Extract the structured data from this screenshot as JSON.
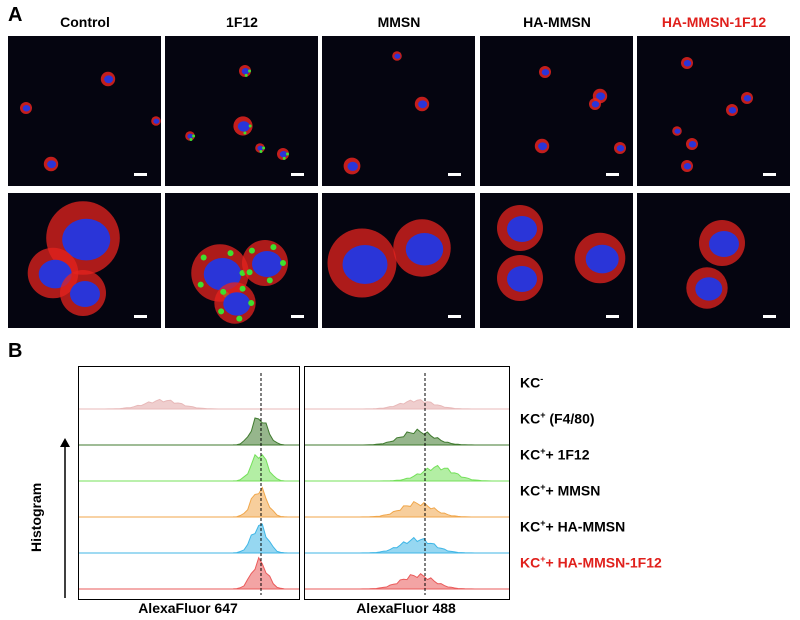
{
  "panel_a": {
    "letter": "A",
    "columns": [
      {
        "title": "Control",
        "color": "#000000"
      },
      {
        "title": "1F12",
        "color": "#000000"
      },
      {
        "title": "MMSN",
        "color": "#000000"
      },
      {
        "title": "HA-MMSN",
        "color": "#000000"
      },
      {
        "title": "HA-MMSN-1F12",
        "color": "#e0201c"
      }
    ]
  },
  "panel_b": {
    "letter": "B",
    "y_label": "Histogram",
    "x_labels": [
      "AlexaFluor 647",
      "AlexaFluor 488"
    ],
    "rows": [
      {
        "base": "KC",
        "sup": "-",
        "rest": "",
        "color": "#000000",
        "fill": "#e8b9b9"
      },
      {
        "base": "KC",
        "sup": "+",
        "rest": " (F4/80)",
        "color": "#000000",
        "fill": "#3f7a2e"
      },
      {
        "base": "KC",
        "sup": "+",
        "rest": "+ 1F12",
        "color": "#000000",
        "fill": "#74e05a"
      },
      {
        "base": "KC",
        "sup": "+",
        "rest": "+ MMSN",
        "color": "#000000",
        "fill": "#f0a64a"
      },
      {
        "base": "KC",
        "sup": "+",
        "rest": "+ HA-MMSN",
        "color": "#000000",
        "fill": "#3fb6e6"
      },
      {
        "base": "KC",
        "sup": "+",
        "rest": "+ HA-MMSN-1F12",
        "color": "#e0201c",
        "fill": "#ea5a5a"
      }
    ]
  },
  "colors": {
    "nucleus": "#2a35d8",
    "red_stain": "#e5231e",
    "green_stain": "#3ee02e",
    "highlight": "#e0201c"
  }
}
